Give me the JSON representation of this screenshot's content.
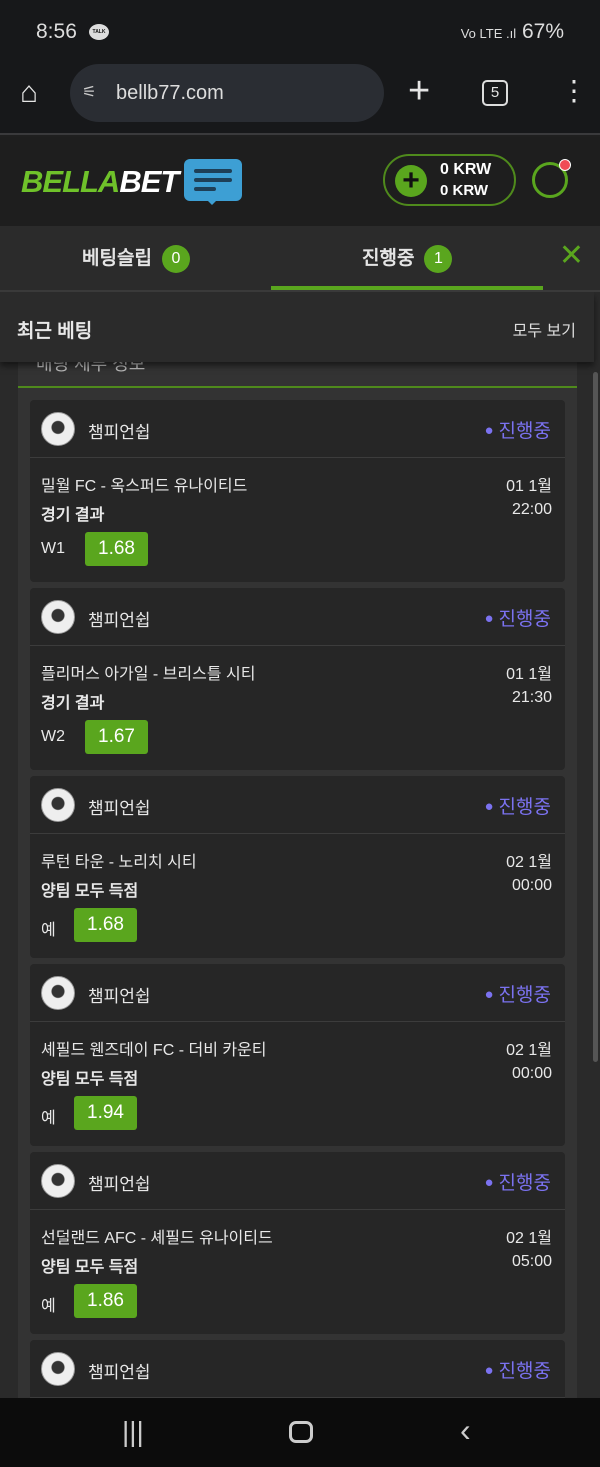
{
  "status_bar": {
    "time": "8:56",
    "talk": "TALK",
    "indicators": "Vo LTE .ıl",
    "battery": "67%"
  },
  "browser": {
    "url": "bellb77.com",
    "tabs_count": "5"
  },
  "site": {
    "logo_green": "BELLA",
    "logo_white": "BET",
    "balance1": "0 KRW",
    "balance2": "0 KRW"
  },
  "tabs": [
    {
      "label": "베팅슬립",
      "count": "0"
    },
    {
      "label": "진행중",
      "count": "1",
      "active": true
    }
  ],
  "recent": {
    "title": "최근 베팅",
    "view_all": "모두 보기",
    "hidden_header": "배팅 세부 정보"
  },
  "bets": [
    {
      "league": "챔피언쉽",
      "status": "진행중",
      "match": "밀월 FC - 옥스퍼드 유나이티드",
      "date": "01 1월",
      "market": "경기 결과",
      "time": "22:00",
      "pick": "W1",
      "odds": "1.68"
    },
    {
      "league": "챔피언쉽",
      "status": "진행중",
      "match": "플리머스 아가일 - 브리스틀 시티",
      "date": "01 1월",
      "market": "경기 결과",
      "time": "21:30",
      "pick": "W2",
      "odds": "1.67"
    },
    {
      "league": "챔피언쉽",
      "status": "진행중",
      "match": "루턴 타운 - 노리치 시티",
      "date": "02 1월",
      "market": "양팀 모두 득점",
      "time": "00:00",
      "pick": "예",
      "odds": "1.68"
    },
    {
      "league": "챔피언쉽",
      "status": "진행중",
      "match": "셰필드 웬즈데이 FC - 더비 카운티",
      "date": "02 1월",
      "market": "양팀 모두 득점",
      "time": "00:00",
      "pick": "예",
      "odds": "1.94"
    },
    {
      "league": "챔피언쉽",
      "status": "진행중",
      "match": "선덜랜드 AFC - 셰필드 유나이티드",
      "date": "02 1월",
      "market": "양팀 모두 득점",
      "time": "05:00",
      "pick": "예",
      "odds": "1.86"
    },
    {
      "league": "챔피언쉽",
      "status": "진행중"
    }
  ],
  "colors": {
    "accent": "#5aa61e",
    "status": "#7b72f0"
  }
}
